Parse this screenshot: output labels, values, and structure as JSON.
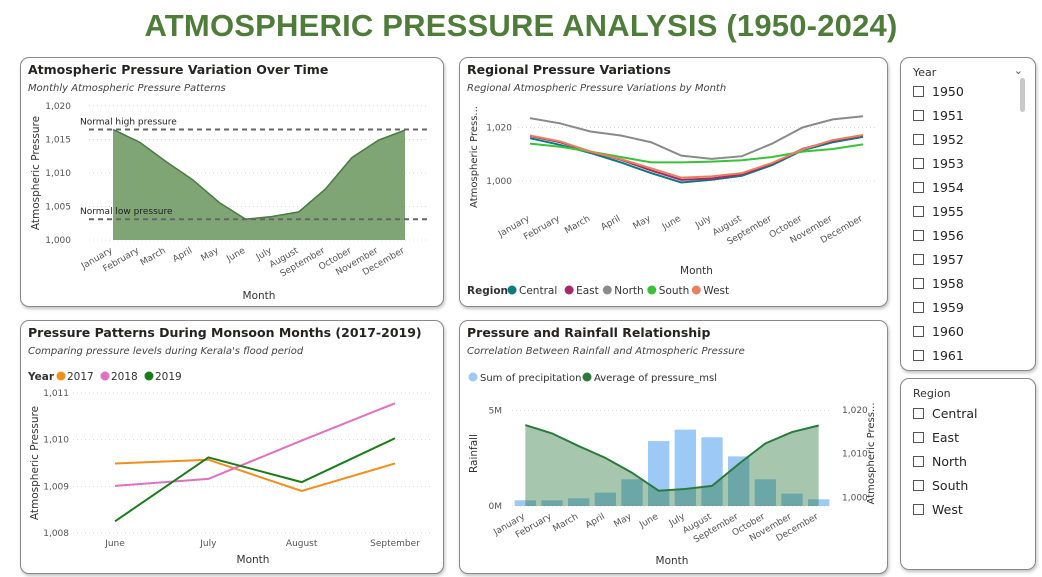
{
  "page_title": "ATMOSPHERIC PRESSURE ANALYSIS (1950-2024)",
  "months": [
    "January",
    "February",
    "March",
    "April",
    "May",
    "June",
    "July",
    "August",
    "September",
    "October",
    "November",
    "December"
  ],
  "chart_data": [
    {
      "id": "variation",
      "type": "area",
      "title": "Atmospheric Pressure Variation Over Time",
      "subtitle": "Monthly Atmospheric Pressure Patterns",
      "xlabel": "Month",
      "ylabel": "Atmospheric Pressure",
      "ylim": [
        1000,
        1020
      ],
      "yticks": [
        "1,000",
        "1,005",
        "1,010",
        "1,015",
        "1,020"
      ],
      "values": [
        1016.5,
        1014.6,
        1011.7,
        1009.0,
        1005.6,
        1003.1,
        1003.5,
        1004.2,
        1007.6,
        1012.3,
        1014.9,
        1016.4
      ],
      "reference_lines": [
        {
          "label": "Normal high pressure",
          "value": 1016.5
        },
        {
          "label": "Normal low pressure",
          "value": 1003.1
        }
      ],
      "color": "#7fa574"
    },
    {
      "id": "regional",
      "type": "line",
      "title": "Regional Pressure Variations",
      "subtitle": "Regional Atmospheric Pressure Variations by Month",
      "xlabel": "Month",
      "ylabel": "Atmospheric Press...",
      "ylim": [
        990,
        1028
      ],
      "yticks": [
        "1,000",
        "1,020"
      ],
      "legend_title": "Region",
      "series": [
        {
          "name": "Central",
          "color": "#0a7c80",
          "values": [
            1016,
            1013.5,
            1010.5,
            1007,
            1003,
            999.5,
            1000.5,
            1002,
            1006,
            1011.5,
            1014.5,
            1016.5
          ]
        },
        {
          "name": "East",
          "color": "#a6296a",
          "values": [
            1016.8,
            1014.5,
            1011,
            1008,
            1004,
            1000.5,
            1001,
            1002.5,
            1006.5,
            1012,
            1015,
            1017
          ]
        },
        {
          "name": "North",
          "color": "#8a8a8a",
          "values": [
            1023.5,
            1021.5,
            1018.5,
            1017,
            1014.5,
            1009.5,
            1008.3,
            1009.3,
            1014,
            1020,
            1023,
            1024.2
          ]
        },
        {
          "name": "South",
          "color": "#39c239",
          "values": [
            1014,
            1012.8,
            1011,
            1009,
            1007,
            1007,
            1007.3,
            1007.8,
            1009,
            1011,
            1012,
            1013.7
          ]
        },
        {
          "name": "West",
          "color": "#e88060",
          "values": [
            1017,
            1014.8,
            1011,
            1008.2,
            1004.8,
            1001.3,
            1001.8,
            1003,
            1006.8,
            1011.8,
            1015.3,
            1017.2
          ]
        }
      ]
    },
    {
      "id": "monsoon",
      "type": "line",
      "title": "Pressure Patterns During Monsoon Months (2017-2019)",
      "subtitle": "Comparing pressure levels during Kerala's flood period",
      "xlabel": "Month",
      "ylabel": "Atmospheric Pressure",
      "ylim": [
        1008,
        1011
      ],
      "yticks": [
        "1,008",
        "1,009",
        "1,010",
        "1,011"
      ],
      "categories": [
        "June",
        "July",
        "August",
        "September"
      ],
      "legend_title": "Year",
      "series": [
        {
          "name": "2017",
          "color": "#f28e1c",
          "values": [
            1009.49,
            1009.57,
            1008.9,
            1009.49
          ]
        },
        {
          "name": "2018",
          "color": "#e070c0",
          "values": [
            1009.01,
            1009.16,
            1009.98,
            1010.78
          ]
        },
        {
          "name": "2019",
          "color": "#1a7c1a",
          "values": [
            1008.25,
            1009.62,
            1009.09,
            1010.03
          ]
        }
      ]
    },
    {
      "id": "rainfall",
      "type": "bar",
      "title": "Pressure and Rainfall Relationship",
      "subtitle": "Correlation Between Rainfall and Atmospheric Pressure",
      "xlabel": "Month",
      "ylabel_left": "Rainfall",
      "ylabel_right": "Atmospheric Press...",
      "ylim_left": [
        0,
        5500000
      ],
      "yticks_left": [
        "0M",
        "5M"
      ],
      "ylim_right": [
        998,
        1022
      ],
      "yticks_right": [
        "1,000",
        "1,010",
        "1,020"
      ],
      "series": [
        {
          "name": "Sum of precipitation",
          "color": "#9cc9f5",
          "values": [
            300000,
            300000,
            400000,
            700000,
            1400000,
            3400000,
            4000000,
            3600000,
            2600000,
            1400000,
            650000,
            350000
          ]
        },
        {
          "name": "Average of pressure_msl",
          "color": "#2b7a3d",
          "values": [
            1016.5,
            1014.6,
            1011.7,
            1009.0,
            1005.6,
            1001.5,
            1001.9,
            1002.6,
            1007.6,
            1012.3,
            1014.9,
            1016.4
          ]
        }
      ]
    }
  ],
  "year_slicer": {
    "title": "Year",
    "options": [
      "1950",
      "1951",
      "1952",
      "1953",
      "1954",
      "1955",
      "1956",
      "1957",
      "1958",
      "1959",
      "1960",
      "1961"
    ]
  },
  "region_slicer": {
    "title": "Region",
    "options": [
      "Central",
      "East",
      "North",
      "South",
      "West"
    ]
  }
}
